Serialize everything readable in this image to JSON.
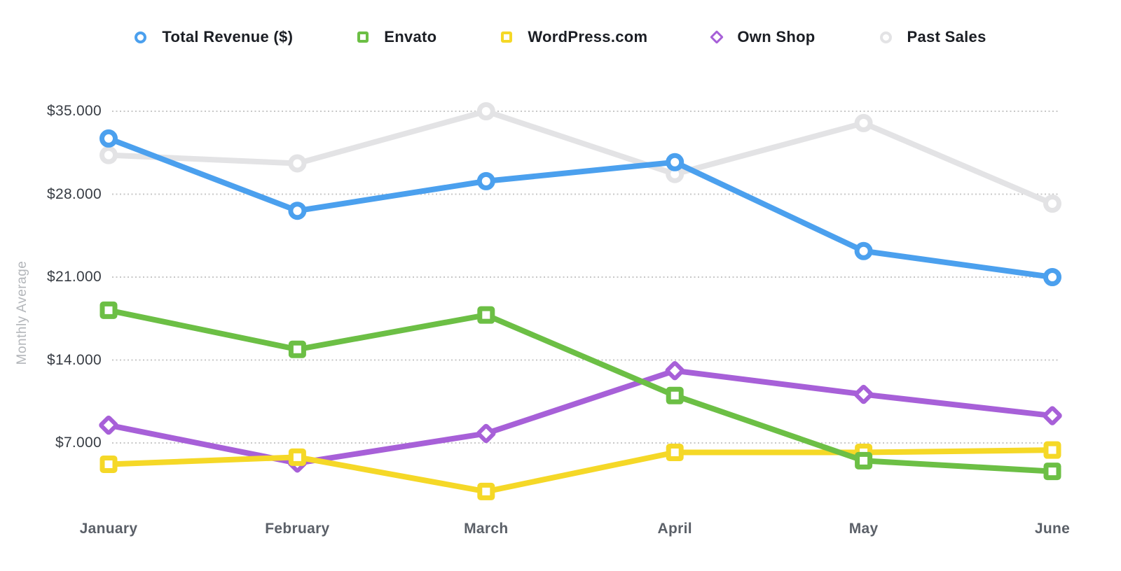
{
  "chart_data": {
    "type": "line",
    "categories": [
      "January",
      "February",
      "March",
      "April",
      "May",
      "June"
    ],
    "y_axis": {
      "label": "Monthly Average",
      "tick_labels": [
        "$35.000",
        "$28.000",
        "$21.000",
        "$14.000",
        "$7.000"
      ],
      "tick_values": [
        35000,
        28000,
        21000,
        14000,
        7000
      ],
      "min_shown": 7000,
      "max_shown": 35000
    },
    "grid": "horizontal-dotted",
    "grid_color": "#c7c7c7",
    "legend_position": "top-center",
    "series": [
      {
        "name": "Total Revenue ($)",
        "color": "#4ba0ee",
        "marker": "circle",
        "values": [
          32700,
          26600,
          29100,
          30700,
          23200,
          21000
        ]
      },
      {
        "name": "Envato",
        "color": "#6cbf45",
        "marker": "square",
        "values": [
          18200,
          14900,
          17800,
          11000,
          5500,
          4600
        ]
      },
      {
        "name": "WordPress.com",
        "color": "#f5d827",
        "marker": "square",
        "values": [
          5200,
          5800,
          2900,
          6200,
          6200,
          6400
        ]
      },
      {
        "name": "Own Shop",
        "color": "#a760d8",
        "marker": "diamond",
        "values": [
          8500,
          5300,
          7800,
          13100,
          11100,
          9300
        ]
      },
      {
        "name": "Past Sales",
        "color": "#e3e3e5",
        "marker": "circle",
        "values": [
          31300,
          30600,
          35000,
          29700,
          34000,
          27200
        ]
      }
    ],
    "draw_order": [
      4,
      3,
      2,
      1,
      0
    ]
  }
}
